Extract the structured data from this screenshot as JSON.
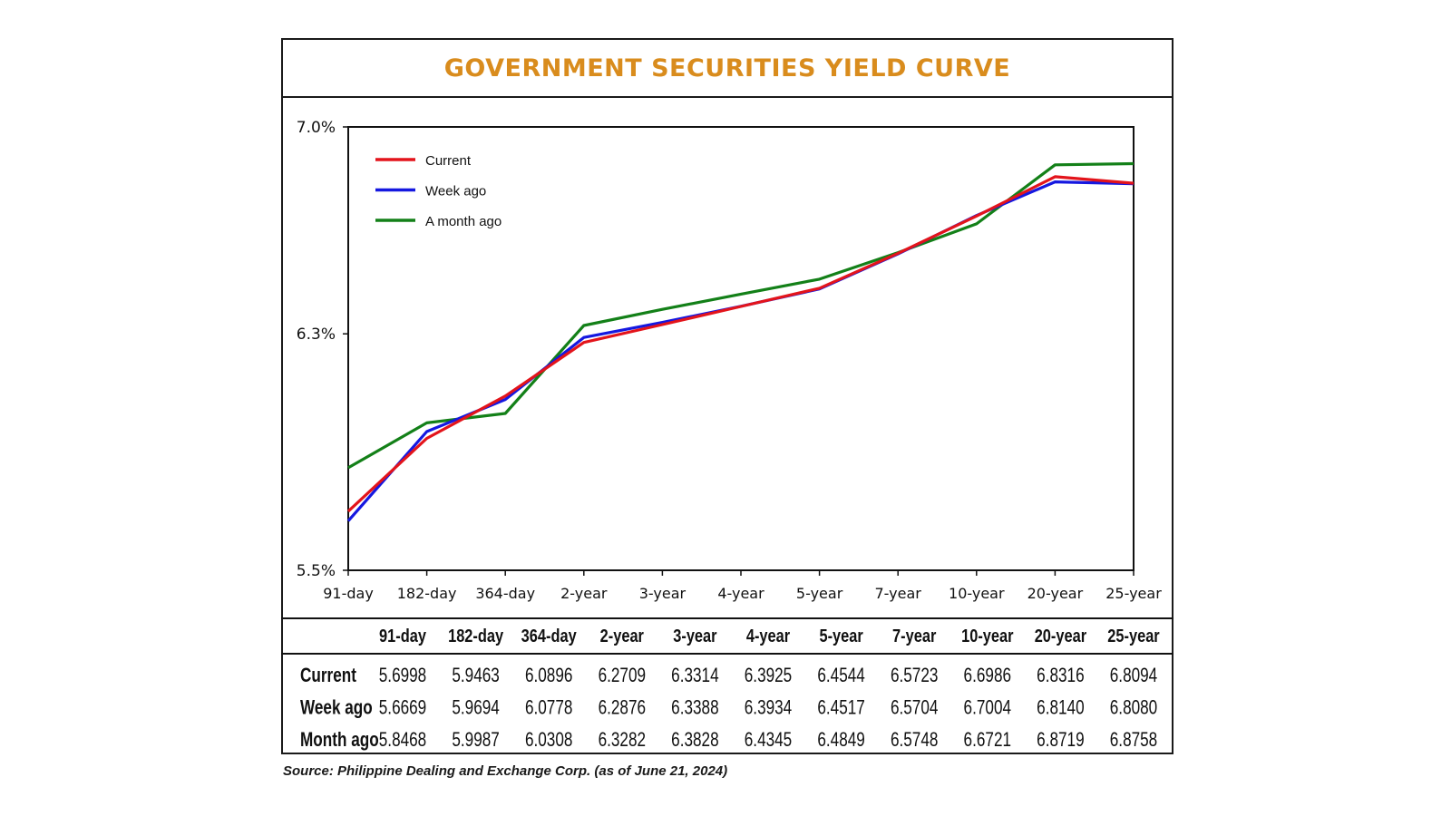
{
  "title": "GOVERNMENT SECURITIES YIELD CURVE",
  "source": "Source: Philippine Dealing and Exchange Corp. (as of June 21, 2024)",
  "colors": {
    "title": "#d98c1d",
    "Current": "#e3141b",
    "Week ago": "#1518e0",
    "A month ago": "#138018"
  },
  "chart_data": {
    "type": "line",
    "title": "GOVERNMENT SECURITIES YIELD CURVE",
    "categories": [
      "91-day",
      "182-day",
      "364-day",
      "2-year",
      "3-year",
      "4-year",
      "5-year",
      "7-year",
      "10-year",
      "20-year",
      "25-year"
    ],
    "series": [
      {
        "name": "Current",
        "values": [
          5.6998,
          5.9463,
          6.0896,
          6.2709,
          6.3314,
          6.3925,
          6.4544,
          6.5723,
          6.6986,
          6.8316,
          6.8094
        ]
      },
      {
        "name": "Week ago",
        "values": [
          5.6669,
          5.9694,
          6.0778,
          6.2876,
          6.3388,
          6.3934,
          6.4517,
          6.5704,
          6.7004,
          6.814,
          6.808
        ]
      },
      {
        "name": "A month ago",
        "values": [
          5.8468,
          5.9987,
          6.0308,
          6.3282,
          6.3828,
          6.4345,
          6.4849,
          6.5748,
          6.6721,
          6.8719,
          6.8758
        ]
      }
    ],
    "series_order": [
      "A month ago",
      "Week ago",
      "Current"
    ],
    "ylim": [
      5.5,
      7.0
    ],
    "yticks": [
      5.5,
      6.3,
      7.0
    ],
    "ytick_labels": [
      "5.5%",
      "6.3%",
      "7.0%"
    ],
    "legend": "top-left",
    "grid": false
  },
  "table": {
    "headers": [
      "91-day",
      "182-day",
      "364-day",
      "2-year",
      "3-year",
      "4-year",
      "5-year",
      "7-year",
      "10-year",
      "20-year",
      "25-year"
    ],
    "rows": [
      {
        "label": "Current",
        "values": [
          "5.6998",
          "5.9463",
          "6.0896",
          "6.2709",
          "6.3314",
          "6.3925",
          "6.4544",
          "6.5723",
          "6.6986",
          "6.8316",
          "6.8094"
        ]
      },
      {
        "label": "Week ago",
        "values": [
          "5.6669",
          "5.9694",
          "6.0778",
          "6.2876",
          "6.3388",
          "6.3934",
          "6.4517",
          "6.5704",
          "6.7004",
          "6.8140",
          "6.8080"
        ]
      },
      {
        "label": "Month ago",
        "values": [
          "5.8468",
          "5.9987",
          "6.0308",
          "6.3282",
          "6.3828",
          "6.4345",
          "6.4849",
          "6.5748",
          "6.6721",
          "6.8719",
          "6.8758"
        ]
      }
    ]
  }
}
